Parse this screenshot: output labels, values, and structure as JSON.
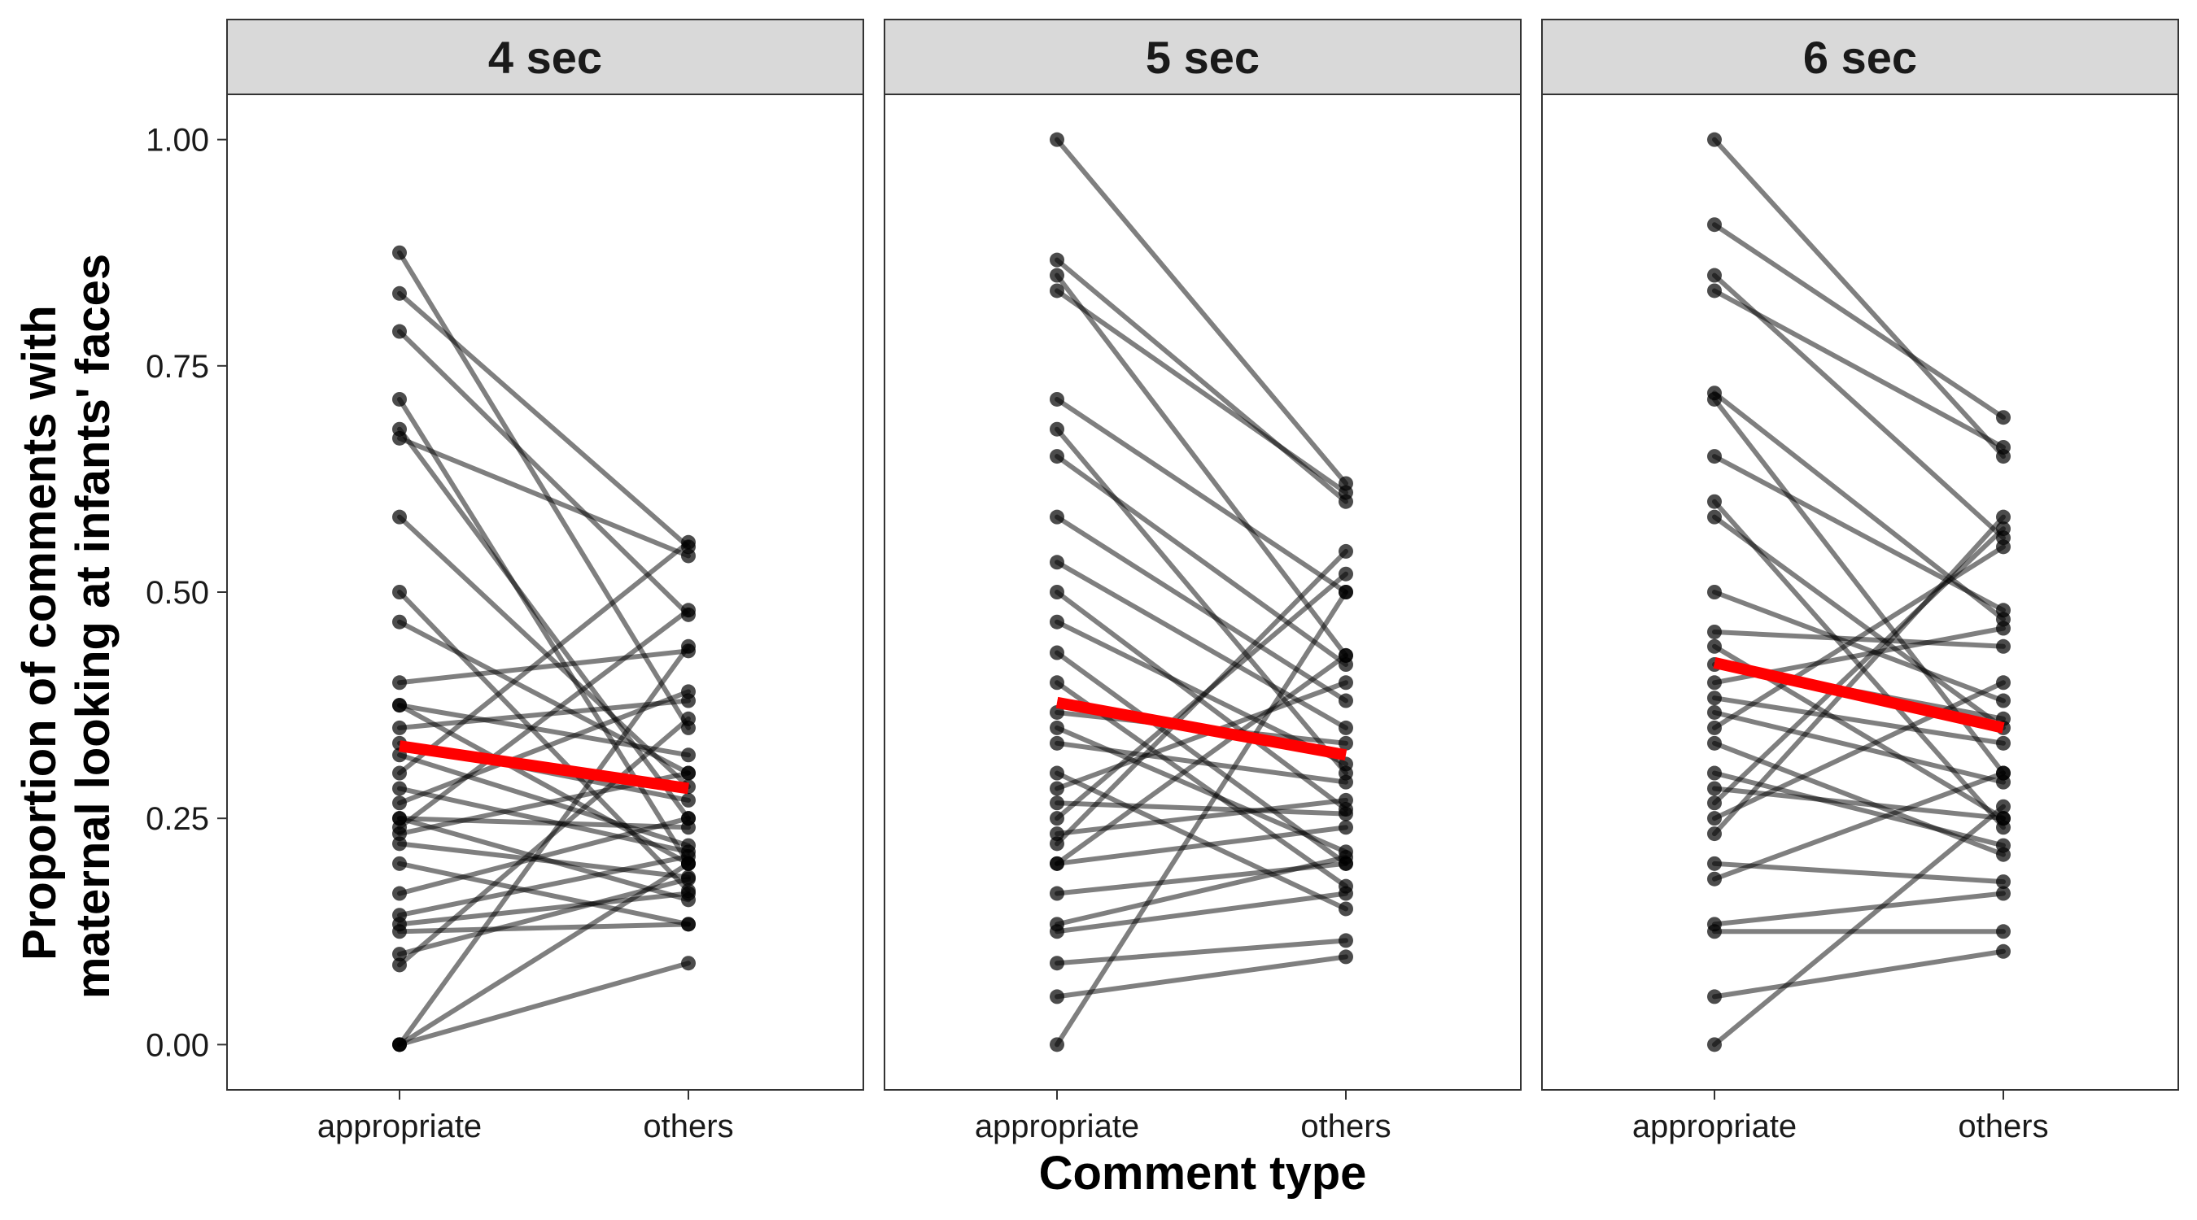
{
  "chart_data": {
    "type": "line",
    "xlabel": "Comment type",
    "ylabel_lines": [
      "Proportion of comments with",
      "maternal looking at infants' faces"
    ],
    "categories": [
      "appropriate",
      "others"
    ],
    "ylim": [
      -0.05,
      1.05
    ],
    "y_ticks": [
      "0.00",
      "0.25",
      "0.50",
      "0.75",
      "1.00"
    ],
    "grid": false,
    "colors": {
      "pairs": "#000000",
      "mean": "#ff0000",
      "strip": "#d9d9d9",
      "frame": "#333333"
    },
    "panels": [
      {
        "label": "4 sec",
        "mean": {
          "appropriate": 0.33,
          "others": 0.283
        },
        "pairs": [
          [
            0.875,
            0.35
          ],
          [
            0.83,
            0.55
          ],
          [
            0.788,
            0.475
          ],
          [
            0.713,
            0.2
          ],
          [
            0.68,
            0.25
          ],
          [
            0.67,
            0.54
          ],
          [
            0.583,
            0.285
          ],
          [
            0.5,
            0.17
          ],
          [
            0.467,
            0.3
          ],
          [
            0.4,
            0.435
          ],
          [
            0.375,
            0.2
          ],
          [
            0.375,
            0.32
          ],
          [
            0.35,
            0.38
          ],
          [
            0.333,
            0.27
          ],
          [
            0.32,
            0.22
          ],
          [
            0.3,
            0.555
          ],
          [
            0.283,
            0.213
          ],
          [
            0.267,
            0.39
          ],
          [
            0.25,
            0.16
          ],
          [
            0.25,
            0.24
          ],
          [
            0.24,
            0.48
          ],
          [
            0.233,
            0.3
          ],
          [
            0.222,
            0.185
          ],
          [
            0.2,
            0.133
          ],
          [
            0.167,
            0.25
          ],
          [
            0.143,
            0.208
          ],
          [
            0.133,
            0.167
          ],
          [
            0.125,
            0.133
          ],
          [
            0.1,
            0.183
          ],
          [
            0.088,
            0.36
          ],
          [
            0.0,
            0.44
          ],
          [
            0.0,
            0.09
          ],
          [
            0.0,
            0.2
          ]
        ]
      },
      {
        "label": "5 sec",
        "mean": {
          "appropriate": 0.378,
          "others": 0.32
        },
        "pairs": [
          [
            1.0,
            0.62
          ],
          [
            0.867,
            0.6
          ],
          [
            0.85,
            0.43
          ],
          [
            0.833,
            0.61
          ],
          [
            0.713,
            0.5
          ],
          [
            0.68,
            0.3
          ],
          [
            0.65,
            0.42
          ],
          [
            0.583,
            0.38
          ],
          [
            0.533,
            0.35
          ],
          [
            0.5,
            0.26
          ],
          [
            0.467,
            0.31
          ],
          [
            0.433,
            0.2
          ],
          [
            0.4,
            0.175
          ],
          [
            0.367,
            0.333
          ],
          [
            0.35,
            0.213
          ],
          [
            0.333,
            0.29
          ],
          [
            0.3,
            0.15
          ],
          [
            0.283,
            0.4
          ],
          [
            0.267,
            0.255
          ],
          [
            0.25,
            0.52
          ],
          [
            0.233,
            0.27
          ],
          [
            0.222,
            0.545
          ],
          [
            0.2,
            0.24
          ],
          [
            0.2,
            0.43
          ],
          [
            0.167,
            0.2
          ],
          [
            0.133,
            0.207
          ],
          [
            0.125,
            0.167
          ],
          [
            0.09,
            0.115
          ],
          [
            0.053,
            0.097
          ],
          [
            0.0,
            0.5
          ]
        ]
      },
      {
        "label": "6 sec",
        "mean": {
          "appropriate": 0.422,
          "others": 0.35
        },
        "pairs": [
          [
            1.0,
            0.65
          ],
          [
            0.906,
            0.693
          ],
          [
            0.85,
            0.56
          ],
          [
            0.833,
            0.66
          ],
          [
            0.72,
            0.47
          ],
          [
            0.713,
            0.3
          ],
          [
            0.65,
            0.48
          ],
          [
            0.6,
            0.24
          ],
          [
            0.583,
            0.35
          ],
          [
            0.5,
            0.38
          ],
          [
            0.456,
            0.44
          ],
          [
            0.44,
            0.25
          ],
          [
            0.42,
            0.36
          ],
          [
            0.4,
            0.46
          ],
          [
            0.383,
            0.333
          ],
          [
            0.367,
            0.29
          ],
          [
            0.35,
            0.55
          ],
          [
            0.333,
            0.21
          ],
          [
            0.3,
            0.22
          ],
          [
            0.283,
            0.25
          ],
          [
            0.267,
            0.57
          ],
          [
            0.25,
            0.4
          ],
          [
            0.233,
            0.583
          ],
          [
            0.2,
            0.18
          ],
          [
            0.183,
            0.3
          ],
          [
            0.133,
            0.167
          ],
          [
            0.125,
            0.125
          ],
          [
            0.053,
            0.103
          ],
          [
            0.0,
            0.263
          ]
        ]
      }
    ]
  }
}
